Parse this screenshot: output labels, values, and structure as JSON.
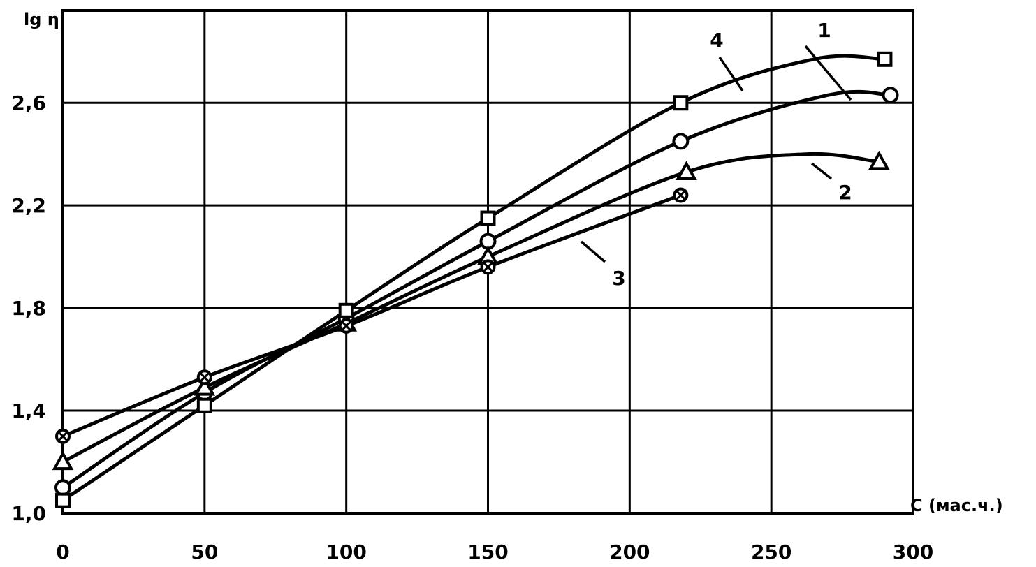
{
  "chart_data": {
    "type": "line",
    "ylabel": "lg η",
    "xlabel": "C (мас.ч.)",
    "xlim": [
      0,
      300
    ],
    "ylim": [
      1.0,
      2.96
    ],
    "x_ticks": [
      "0",
      "50",
      "100",
      "150",
      "200",
      "250",
      "300"
    ],
    "y_ticks": [
      "1,0",
      "1,4",
      "1,8",
      "2,2",
      "2,6"
    ],
    "grid": true,
    "series": [
      {
        "name": "1",
        "marker": "circle",
        "x": [
          0,
          50,
          100,
          150,
          218,
          292
        ],
        "y": [
          1.1,
          1.47,
          1.76,
          2.06,
          2.45,
          2.63
        ],
        "curve_x": [
          0,
          50,
          100,
          150,
          218,
          270,
          292
        ],
        "curve_y": [
          1.1,
          1.47,
          1.76,
          2.06,
          2.45,
          2.63,
          2.63
        ]
      },
      {
        "name": "2",
        "marker": "triangle",
        "x": [
          0,
          50,
          100,
          150,
          220,
          288
        ],
        "y": [
          1.2,
          1.49,
          1.74,
          2.0,
          2.33,
          2.37
        ],
        "curve_x": [
          0,
          50,
          100,
          150,
          220,
          262,
          288
        ],
        "curve_y": [
          1.2,
          1.49,
          1.74,
          2.0,
          2.33,
          2.4,
          2.37
        ]
      },
      {
        "name": "3",
        "marker": "crossed-circle",
        "x": [
          0,
          50,
          100,
          150,
          218
        ],
        "y": [
          1.3,
          1.53,
          1.73,
          1.96,
          2.24
        ],
        "curve_x": [
          0,
          50,
          100,
          150,
          218
        ],
        "curve_y": [
          1.3,
          1.53,
          1.73,
          1.96,
          2.24
        ]
      },
      {
        "name": "4",
        "marker": "square",
        "x": [
          0,
          50,
          100,
          150,
          218,
          290
        ],
        "y": [
          1.05,
          1.42,
          1.79,
          2.15,
          2.6,
          2.77
        ],
        "curve_x": [
          0,
          50,
          100,
          150,
          218,
          265,
          290
        ],
        "curve_y": [
          1.05,
          1.42,
          1.79,
          2.15,
          2.6,
          2.77,
          2.77
        ]
      }
    ]
  }
}
